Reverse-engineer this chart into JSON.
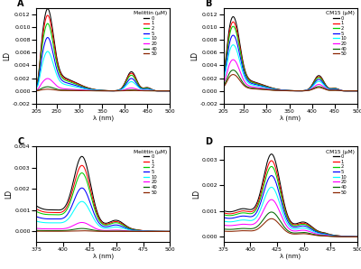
{
  "colors": [
    "black",
    "red",
    "#00cc00",
    "blue",
    "cyan",
    "magenta",
    "#006600",
    "#8B2500"
  ],
  "concentrations": [
    "0",
    "1",
    "2",
    "5",
    "10",
    "20",
    "40",
    "50"
  ],
  "panel_labels": [
    "A",
    "B",
    "C",
    "D"
  ],
  "legend_titles": [
    "Melittin (μM)",
    "CM15 (μM)",
    "Melittin (μM)",
    "CM15 (μM)"
  ],
  "xlabel": "λ (nm)",
  "ylabel": "LD",
  "background": "#ffffff",
  "ab_xlim": [
    205,
    500
  ],
  "ab_ylim": [
    -0.002,
    0.013
  ],
  "ab_xticks": [
    205,
    250,
    300,
    350,
    400,
    450,
    500
  ],
  "ab_yticks": [
    -0.002,
    0.0,
    0.002,
    0.004,
    0.006,
    0.008,
    0.01,
    0.012
  ],
  "cd_xlim": [
    375,
    500
  ],
  "cd_ylim_c": [
    -0.0005,
    0.004
  ],
  "cd_ylim_d": [
    -0.0002,
    0.0035
  ],
  "cd_yticks_c": [
    0.0,
    0.001,
    0.002,
    0.003,
    0.004
  ],
  "cd_yticks_d": [
    0.0,
    0.001,
    0.002,
    0.003
  ],
  "cd_xticks": [
    375,
    400,
    425,
    450,
    475,
    500
  ]
}
